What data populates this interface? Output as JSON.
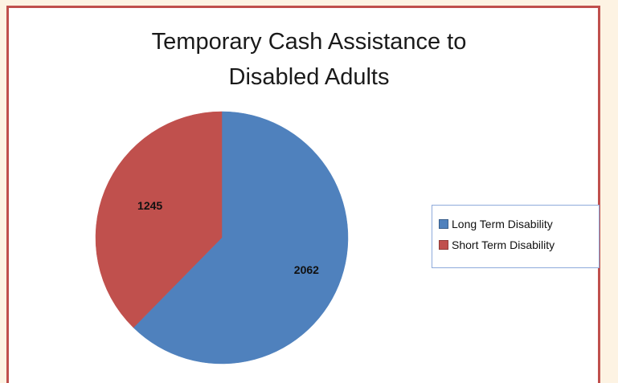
{
  "chart_data": {
    "type": "pie",
    "title_lines": [
      "Temporary Cash Assistance to",
      "Disabled Adults"
    ],
    "categories": [
      "Long Term Disability",
      "Short Term Disability"
    ],
    "values": [
      2062,
      1245
    ],
    "data_labels": [
      "2062",
      "1245"
    ],
    "colors": [
      "#4f81bd",
      "#c0504d"
    ],
    "legend_position": "right"
  },
  "colors": {
    "border": "#c0504d",
    "page_background": "#fdf3e3"
  }
}
